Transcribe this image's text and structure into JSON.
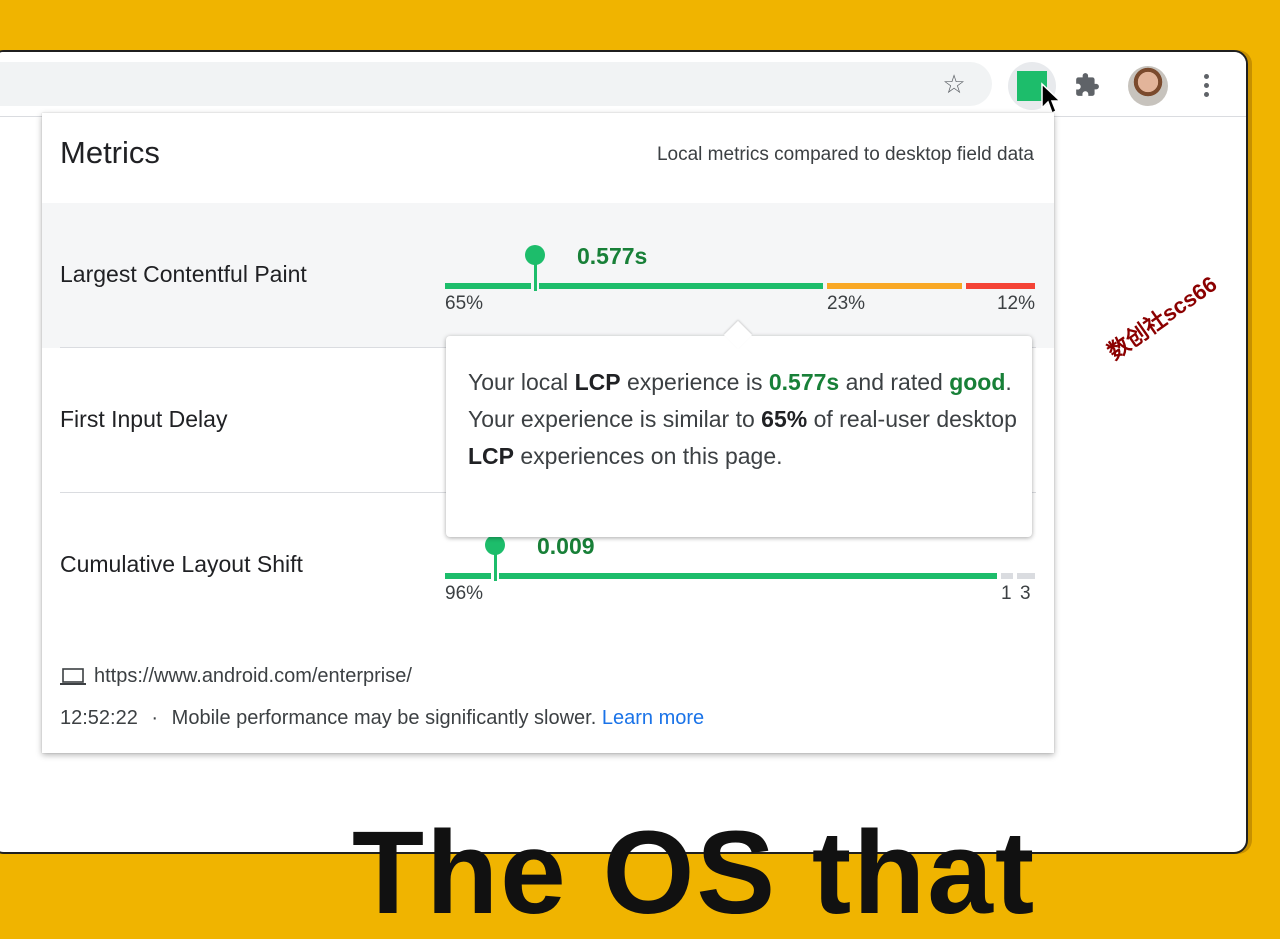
{
  "popup": {
    "title": "Metrics",
    "subtitle": "Local metrics compared to desktop field data"
  },
  "metrics": [
    {
      "name": "Largest Contentful Paint",
      "value": "0.577s",
      "good_pct": "65%",
      "ni_pct": "23%",
      "poor_pct": "12%",
      "distribution": [
        0.65,
        0.23,
        0.12
      ],
      "marker_fraction": 0.155
    },
    {
      "name": "First Input Delay"
    },
    {
      "name": "Cumulative Layout Shift",
      "value": "0.009",
      "good_pct": "96%",
      "ni_pct": "1",
      "poor_pct": "3",
      "distribution": [
        0.96,
        0.01,
        0.03
      ],
      "marker_fraction": 0.085
    }
  ],
  "tooltip": {
    "t1": "Your local ",
    "metric": "LCP",
    "t2": " experience is ",
    "value": "0.577s",
    "t3": " and rated ",
    "rating": "good",
    "t4": ". Your experience is similar to ",
    "pct": "65%",
    "t5": " of real-user desktop ",
    "metric2": "LCP",
    "t6": " experiences on this page."
  },
  "url": "https://www.android.com/enterprise/",
  "footer": {
    "time": "12:52:22",
    "separator": "·",
    "message": "Mobile performance may be significantly slower.",
    "link": "Learn more"
  },
  "page": {
    "heading_fragment": "The OS that"
  },
  "watermark": "数创社scs66",
  "colors": {
    "good": "#1dbd6b",
    "needs_improvement": "#f9a825",
    "poor": "#f44336",
    "empty": "#dadce0",
    "background": "#f0b400"
  },
  "icons": [
    "star-icon",
    "extension-square-icon",
    "puzzle-icon",
    "avatar",
    "more-vert-icon",
    "cursor-icon",
    "laptop-icon"
  ]
}
